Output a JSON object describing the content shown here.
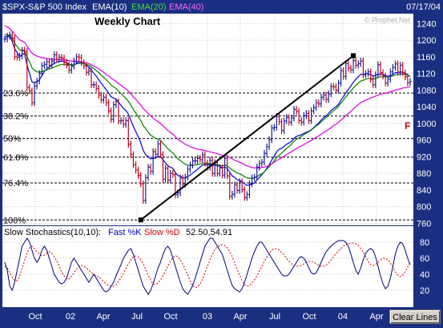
{
  "header": {
    "symbol": "$SPX-S&P 500 Index",
    "ema10": "EMA(10)",
    "ema20": "EMA(20)",
    "ema40": "EMA(40)",
    "date": "07/17/04",
    "watermark": "© Prophet.Net"
  },
  "colors": {
    "frame": "#1a2f80",
    "price_bg": "#ffffff",
    "up_bar": "#1b1f9a",
    "down_bar": "#c0001c",
    "ema10": "#0000dd",
    "ema20": "#008000",
    "ema40": "#dd00dd",
    "stoch_k": "#000080",
    "stoch_d": "#cc0000",
    "fib_line": "#000000"
  },
  "chart_data": [
    {
      "type": "line",
      "title": "Weekly Chart",
      "x_tick_labels": [
        "Oct",
        "02",
        "Apr",
        "Jul",
        "Oct",
        "03",
        "Apr",
        "Jul",
        "Oct",
        "04",
        "Apr"
      ],
      "y_ticks": [
        760,
        800,
        840,
        880,
        920,
        960,
        1000,
        1040,
        1080,
        1120,
        1160,
        1200,
        1240
      ],
      "ylim": [
        757,
        1262
      ],
      "grid": true,
      "fib_levels": [
        {
          "label": "23.6%",
          "value": 1073
        },
        {
          "label": "38.2%",
          "value": 1018
        },
        {
          "label": "50%",
          "value": 964
        },
        {
          "label": "61.8%",
          "value": 919
        },
        {
          "label": "76.4%",
          "value": 857
        },
        {
          "label": "100%",
          "value": 768
        }
      ],
      "trendline": {
        "from": {
          "x": 55,
          "y": 768
        },
        "to": {
          "x": 141,
          "y": 1163
        }
      },
      "annotation": "F",
      "series": [
        {
          "name": "$SPX",
          "close": [
            1203,
            1210,
            1213,
            1205,
            1160,
            1159,
            1162,
            1176,
            1173,
            1086,
            1078,
            1050,
            1090,
            1102,
            1120,
            1139,
            1142,
            1148,
            1140,
            1150,
            1165,
            1154,
            1159,
            1157,
            1147,
            1140,
            1128,
            1138,
            1150,
            1160,
            1158,
            1146,
            1138,
            1123,
            1126,
            1093,
            1093,
            1084,
            1068,
            1057,
            1063,
            1050,
            1030,
            1010,
            1045,
            1052,
            1006,
            1007,
            998,
            1007,
            950,
            925,
            901,
            888,
            875,
            855,
            815,
            870,
            895,
            885,
            932,
            926,
            951,
            925,
            866,
            892,
            864,
            880,
            877,
            829,
            833,
            869,
            854,
            871,
            890,
            900,
            910,
            910,
            916,
            913,
            925,
            905,
            895,
            911,
            880,
            906,
            880,
            893,
            876,
            916,
            874,
            825,
            830,
            852,
            839,
            860,
            841,
            822,
            829,
            855,
            869,
            871,
            895,
            904,
            907,
            928,
            944,
            961,
            989,
            991,
            1017,
            1004,
            983,
            1006,
            1014,
            1003,
            1013,
            1034,
            1029,
            1007,
            1003,
            1019,
            1024,
            1007,
            1030,
            1038,
            1050,
            1047,
            1063,
            1068,
            1058,
            1071,
            1089,
            1088,
            1080,
            1097,
            1127,
            1113,
            1144,
            1133,
            1129,
            1151,
            1140,
            1144,
            1150,
            1117,
            1120,
            1124,
            1106,
            1093,
            1117,
            1141,
            1122,
            1114,
            1097,
            1106,
            1124,
            1135,
            1143,
            1123,
            1140,
            1122,
            1112,
            1098,
            1101
          ]
        },
        {
          "name": "EMA(10)",
          "values": [
            1208,
            1208,
            1210,
            1197,
            1180,
            1170,
            1160,
            1166,
            1168,
            1140,
            1120,
            1100,
            1098,
            1100,
            1105,
            1115,
            1125,
            1132,
            1136,
            1140,
            1145,
            1147,
            1149,
            1150,
            1149,
            1146,
            1142,
            1140,
            1141,
            1145,
            1147,
            1147,
            1145,
            1140,
            1136,
            1128,
            1121,
            1114,
            1105,
            1097,
            1089,
            1081,
            1073,
            1064,
            1061,
            1059,
            1051,
            1044,
            1036,
            1031,
            1022,
            1008,
            993,
            980,
            968,
            954,
            935,
            925,
            920,
            915,
            916,
            917,
            920,
            920,
            913,
            905,
            898,
            895,
            892,
            882,
            875,
            873,
            869,
            869,
            872,
            876,
            881,
            885,
            890,
            895,
            900,
            901,
            900,
            902,
            899,
            900,
            898,
            897,
            893,
            895,
            892,
            883,
            874,
            870,
            865,
            863,
            860,
            855,
            851,
            852,
            854,
            857,
            864,
            870,
            877,
            884,
            892,
            901,
            912,
            921,
            932,
            938,
            940,
            945,
            950,
            953,
            957,
            964,
            969,
            971,
            973,
            976,
            979,
            981,
            985,
            990,
            996,
            1001,
            1008,
            1014,
            1018,
            1024,
            1031,
            1036,
            1040,
            1046,
            1056,
            1064,
            1074,
            1082,
            1090,
            1099,
            1106,
            1112,
            1118,
            1118,
            1119,
            1120,
            1117,
            1114,
            1115,
            1118,
            1119,
            1118,
            1115,
            1114,
            1115,
            1118,
            1122,
            1122,
            1124,
            1123,
            1121,
            1116,
            1113
          ]
        },
        {
          "name": "EMA(20)",
          "values": [
            1215,
            1212,
            1212,
            1205,
            1193,
            1185,
            1177,
            1175,
            1174,
            1160,
            1148,
            1134,
            1128,
            1124,
            1123,
            1125,
            1127,
            1129,
            1131,
            1133,
            1136,
            1138,
            1140,
            1142,
            1142,
            1142,
            1141,
            1141,
            1141,
            1143,
            1144,
            1144,
            1144,
            1142,
            1140,
            1136,
            1132,
            1127,
            1122,
            1116,
            1111,
            1105,
            1099,
            1092,
            1088,
            1084,
            1078,
            1072,
            1066,
            1060,
            1053,
            1044,
            1034,
            1025,
            1016,
            1007,
            995,
            987,
            979,
            972,
            968,
            964,
            962,
            959,
            952,
            946,
            939,
            934,
            929,
            922,
            915,
            911,
            906,
            902,
            900,
            899,
            899,
            900,
            901,
            902,
            904,
            904,
            903,
            904,
            902,
            902,
            901,
            900,
            898,
            900,
            898,
            893,
            888,
            885,
            881,
            879,
            876,
            872,
            869,
            868,
            868,
            869,
            872,
            876,
            879,
            884,
            890,
            896,
            903,
            910,
            918,
            924,
            929,
            934,
            940,
            945,
            950,
            957,
            962,
            965,
            969,
            973,
            977,
            980,
            984,
            989,
            994,
            998,
            1004,
            1009,
            1014,
            1019,
            1025,
            1031,
            1035,
            1041,
            1049,
            1056,
            1064,
            1071,
            1078,
            1085,
            1091,
            1097,
            1102,
            1104,
            1106,
            1108,
            1108,
            1107,
            1108,
            1111,
            1112,
            1112,
            1112,
            1111,
            1112,
            1114,
            1117,
            1117,
            1119,
            1119,
            1118,
            1116,
            1114
          ]
        },
        {
          "name": "EMA(40)",
          "values": [
            1235,
            1232,
            1228,
            1222,
            1214,
            1208,
            1201,
            1198,
            1195,
            1185,
            1177,
            1169,
            1165,
            1162,
            1160,
            1158,
            1157,
            1156,
            1155,
            1154,
            1154,
            1154,
            1154,
            1154,
            1153,
            1152,
            1151,
            1150,
            1149,
            1149,
            1149,
            1148,
            1147,
            1146,
            1144,
            1141,
            1138,
            1135,
            1131,
            1127,
            1123,
            1118,
            1114,
            1109,
            1105,
            1101,
            1096,
            1092,
            1087,
            1083,
            1078,
            1071,
            1064,
            1058,
            1051,
            1044,
            1036,
            1030,
            1024,
            1018,
            1013,
            1008,
            1004,
            1000,
            994,
            989,
            983,
            978,
            974,
            968,
            962,
            958,
            954,
            950,
            947,
            944,
            942,
            940,
            938,
            937,
            936,
            935,
            933,
            932,
            930,
            929,
            927,
            925,
            923,
            923,
            921,
            918,
            915,
            912,
            909,
            907,
            904,
            901,
            898,
            896,
            894,
            893,
            893,
            893,
            894,
            895,
            897,
            899,
            903,
            907,
            911,
            914,
            918,
            921,
            925,
            929,
            932,
            936,
            940,
            943,
            946,
            949,
            953,
            956,
            959,
            963,
            967,
            970,
            974,
            978,
            982,
            986,
            990,
            995,
            998,
            1003,
            1008,
            1013,
            1019,
            1024,
            1029,
            1035,
            1040,
            1045,
            1050,
            1053,
            1056,
            1059,
            1061,
            1063,
            1066,
            1068,
            1070,
            1072,
            1073,
            1074,
            1076,
            1078,
            1080,
            1082,
            1083,
            1085,
            1086,
            1087,
            1088
          ]
        }
      ]
    },
    {
      "type": "line",
      "title": "Slow Stochastics(10,10):",
      "y_ticks": [
        20,
        40,
        60,
        80
      ],
      "ylim": [
        0,
        100
      ],
      "grid": true,
      "fast_k_label": "Fast %K",
      "slow_d_label": "Slow %D",
      "readout": "52.50,54.91",
      "series": [
        {
          "name": "Fast %K",
          "values": [
            55,
            45,
            25,
            20,
            30,
            45,
            60,
            75,
            80,
            85,
            80,
            70,
            60,
            55,
            60,
            70,
            75,
            70,
            60,
            50,
            40,
            35,
            30,
            28,
            30,
            35,
            45,
            55,
            60,
            55,
            50,
            45,
            40,
            35,
            30,
            35,
            40,
            35,
            30,
            25,
            20,
            18,
            20,
            25,
            30,
            38,
            45,
            52,
            60,
            65,
            70,
            72,
            65,
            55,
            45,
            35,
            25,
            20,
            15,
            20,
            28,
            38,
            48,
            55,
            65,
            72,
            75,
            70,
            60,
            50,
            40,
            30,
            22,
            18,
            15,
            20,
            26,
            35,
            45,
            55,
            65,
            75,
            80,
            85,
            85,
            80,
            75,
            70,
            65,
            55,
            45,
            35,
            26,
            22,
            20,
            18,
            22,
            30,
            40,
            50,
            60,
            68,
            75,
            80,
            80,
            75,
            70,
            65,
            60,
            55,
            50,
            45,
            40,
            38,
            38,
            40,
            45,
            50,
            55,
            60,
            62,
            60,
            55,
            48,
            42,
            40,
            42,
            48,
            55,
            62,
            68,
            72,
            75,
            78,
            80,
            82,
            82,
            82,
            80,
            75,
            65,
            55,
            45,
            40,
            48,
            58,
            66,
            70,
            72,
            70,
            62,
            50,
            38,
            28,
            22,
            25,
            35,
            50,
            65,
            75,
            80,
            78,
            70,
            60,
            52
          ]
        },
        {
          "name": "Slow %D",
          "values": [
            50,
            48,
            42,
            36,
            32,
            32,
            38,
            47,
            57,
            66,
            73,
            75,
            72,
            68,
            65,
            63,
            64,
            66,
            68,
            66,
            62,
            57,
            50,
            43,
            38,
            34,
            34,
            37,
            42,
            46,
            50,
            51,
            50,
            48,
            45,
            42,
            40,
            38,
            37,
            34,
            31,
            28,
            26,
            25,
            25,
            27,
            31,
            36,
            41,
            47,
            53,
            58,
            62,
            63,
            62,
            58,
            53,
            46,
            39,
            33,
            28,
            27,
            29,
            33,
            38,
            44,
            50,
            56,
            61,
            63,
            62,
            58,
            53,
            46,
            39,
            32,
            26,
            23,
            24,
            28,
            34,
            42,
            50,
            58,
            65,
            71,
            74,
            76,
            77,
            76,
            73,
            68,
            62,
            54,
            46,
            39,
            32,
            27,
            25,
            26,
            29,
            33,
            38,
            44,
            50,
            56,
            61,
            66,
            70,
            72,
            72,
            70,
            67,
            64,
            60,
            56,
            53,
            51,
            50,
            50,
            51,
            53,
            55,
            56,
            56,
            55,
            53,
            51,
            50,
            50,
            51,
            54,
            58,
            62,
            66,
            69,
            72,
            75,
            77,
            78,
            79,
            79,
            78,
            76,
            72,
            68,
            62,
            56,
            52,
            51,
            52,
            55,
            58,
            60,
            60,
            58,
            54,
            49,
            43,
            39,
            37,
            39,
            43,
            49,
            55
          ]
        }
      ]
    }
  ]
}
